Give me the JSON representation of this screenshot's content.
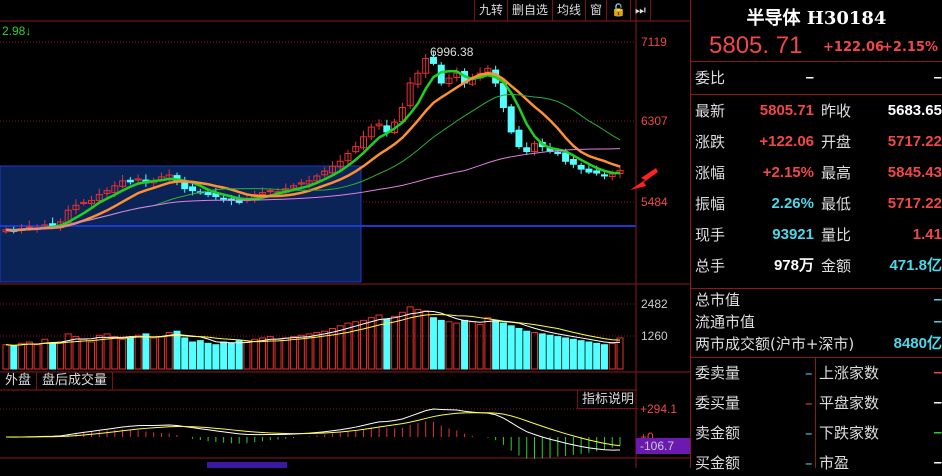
{
  "toolbar": {
    "items": [
      "九转",
      "删自选",
      "均线",
      "窗",
      "🔓",
      "⏭"
    ]
  },
  "main_chart": {
    "indicator_value": "2.98↓",
    "high_marker": "6996.38",
    "price_axis": [
      "7119",
      "6307",
      "5484"
    ],
    "volume_axis": [
      "2482",
      "1260"
    ],
    "macd_axis": {
      "top": "+294.1",
      "zero": "+0",
      "current": "-106.7"
    },
    "tabs": [
      "外盘",
      "盘后成交量"
    ],
    "indicator_help": "指标说明",
    "colors": {
      "up": "#e83030",
      "down": "#54ffff",
      "ma5": "#20d020",
      "ma10": "#ff9030",
      "ma20": "#30b030",
      "ma60": "#e080e0",
      "selection": "#0a2458"
    }
  },
  "chart_data": {
    "type": "candlestick",
    "price_range": [
      4668,
      7119
    ],
    "closes": [
      5200,
      5190,
      5210,
      5230,
      5220,
      5250,
      5240,
      5280,
      5400,
      5450,
      5480,
      5500,
      5560,
      5600,
      5650,
      5700,
      5690,
      5720,
      5680,
      5700,
      5740,
      5760,
      5690,
      5620,
      5600,
      5580,
      5560,
      5540,
      5520,
      5500,
      5480,
      5520,
      5560,
      5580,
      5600,
      5590,
      5620,
      5650,
      5680,
      5700,
      5750,
      5800,
      5850,
      5900,
      5980,
      6050,
      6150,
      6250,
      6280,
      6200,
      6300,
      6450,
      6700,
      6800,
      6950,
      6900,
      6700,
      6750,
      6800,
      6700,
      6750,
      6800,
      6850,
      6700,
      6450,
      6200,
      6050,
      6000,
      6080,
      6050,
      6000,
      5980,
      5900,
      5870,
      5820,
      5790,
      5780,
      5750,
      5770,
      5805
    ],
    "volumes": [
      900,
      850,
      950,
      1000,
      900,
      1100,
      950,
      1000,
      1300,
      1200,
      1100,
      1000,
      1250,
      1300,
      1200,
      1100,
      1150,
      1250,
      1300,
      1150,
      1200,
      1350,
      1400,
      1150,
      1000,
      1050,
      950,
      900,
      1000,
      950,
      1050,
      1000,
      1100,
      1150,
      1200,
      1100,
      1150,
      1200,
      1250,
      1300,
      1350,
      1400,
      1500,
      1600,
      1700,
      1750,
      1800,
      1900,
      2000,
      1850,
      1950,
      2100,
      2300,
      2200,
      2150,
      1900,
      1800,
      1750,
      1700,
      1800,
      1750,
      1650,
      1900,
      1800,
      1700,
      1600,
      1500,
      1400,
      1350,
      1300,
      1250,
      1200,
      1150,
      1100,
      1050,
      1000,
      950,
      900,
      950,
      1150
    ]
  },
  "quote": {
    "name": "半导体 H30184",
    "price": "5805. 71",
    "change": "+122.06",
    "pct": "+2.15%",
    "weibi_label": "委比",
    "weibi_v1": "–",
    "weibi_v2": "–",
    "rows": [
      {
        "l1": "最新",
        "v1": "5805.71",
        "c1": "red",
        "l2": "昨收",
        "v2": "5683.65",
        "c2": "white"
      },
      {
        "l1": "涨跌",
        "v1": "+122.06",
        "c1": "red",
        "l2": "开盘",
        "v2": "5717.22",
        "c2": "red"
      },
      {
        "l1": "涨幅",
        "v1": "+2.15%",
        "c1": "red",
        "l2": "最高",
        "v2": "5845.43",
        "c2": "red"
      },
      {
        "l1": "振幅",
        "v1": "2.26%",
        "c1": "cyan",
        "l2": "最低",
        "v2": "5717.22",
        "c2": "red"
      },
      {
        "l1": "现手",
        "v1": "93921",
        "c1": "cyan",
        "l2": "量比",
        "v2": "1.41",
        "c2": "red"
      },
      {
        "l1": "总手",
        "v1": "978万",
        "c1": "white",
        "l2": "金额",
        "v2": "471.8亿",
        "c2": "cyan"
      }
    ],
    "market": [
      {
        "l": "总市值",
        "v": "–"
      },
      {
        "l": "流通市值",
        "v": "–"
      },
      {
        "l": "两市成交额(沪市+深市)",
        "v": "8480亿"
      }
    ],
    "bottom": [
      {
        "l1": "委卖量",
        "v1": "–",
        "c1": "cyan",
        "l2": "上涨家数",
        "v2": "–",
        "c2": "red"
      },
      {
        "l1": "委买量",
        "v1": "–",
        "c1": "red",
        "l2": "平盘家数",
        "v2": "–",
        "c2": "white"
      },
      {
        "l1": "卖金额",
        "v1": "–",
        "c1": "cyan",
        "l2": "下跌家数",
        "v2": "–",
        "c2": "green"
      },
      {
        "l1": "买金额",
        "v1": "–",
        "c1": "cyan",
        "l2": "市盈",
        "v2": "–",
        "c2": "white"
      }
    ]
  }
}
